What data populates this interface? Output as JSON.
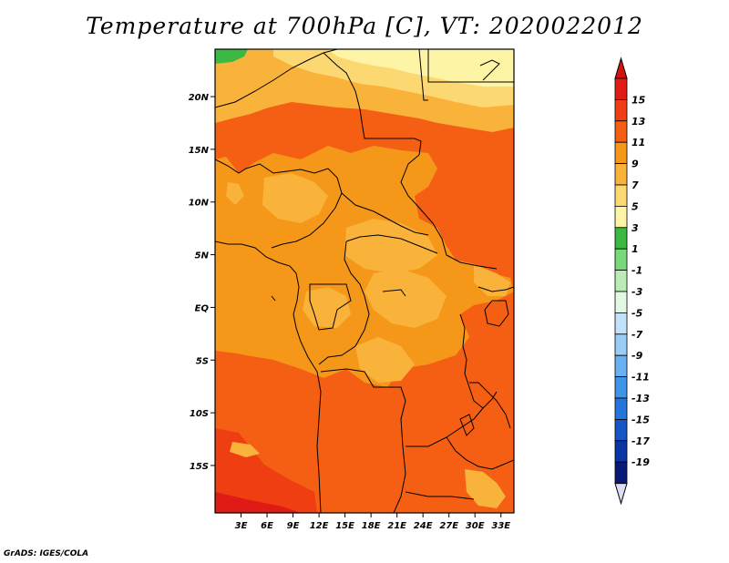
{
  "title": "Temperature at 700hPa [C], VT: 2020022012",
  "credit": "GrADS: IGES/COLA",
  "map": {
    "lat_ticks": [
      {
        "value": 20,
        "label": "20N"
      },
      {
        "value": 15,
        "label": "15N"
      },
      {
        "value": 10,
        "label": "10N"
      },
      {
        "value": 5,
        "label": "5N"
      },
      {
        "value": 0,
        "label": "EQ"
      },
      {
        "value": -5,
        "label": "5S"
      },
      {
        "value": -10,
        "label": "10S"
      },
      {
        "value": -15,
        "label": "15S"
      }
    ],
    "lon_ticks": [
      {
        "value": 3,
        "label": "3E"
      },
      {
        "value": 6,
        "label": "6E"
      },
      {
        "value": 9,
        "label": "9E"
      },
      {
        "value": 12,
        "label": "12E"
      },
      {
        "value": 15,
        "label": "15E"
      },
      {
        "value": 18,
        "label": "18E"
      },
      {
        "value": 21,
        "label": "21E"
      },
      {
        "value": 24,
        "label": "24E"
      },
      {
        "value": 27,
        "label": "27E"
      },
      {
        "value": 30,
        "label": "30E"
      },
      {
        "value": 33,
        "label": "33E"
      }
    ],
    "lon_range": [
      0,
      34.5
    ],
    "lat_range": [
      -19.5,
      24.5
    ]
  },
  "colorbar": {
    "levels": [
      {
        "label": "15",
        "color": "#e01a14"
      },
      {
        "label": "13",
        "color": "#ef3e12"
      },
      {
        "label": "11",
        "color": "#f45f14"
      },
      {
        "label": "9",
        "color": "#f5981a"
      },
      {
        "label": "7",
        "color": "#f9b33a"
      },
      {
        "label": "5",
        "color": "#fcd872"
      },
      {
        "label": "3",
        "color": "#fdf4a6"
      },
      {
        "label": "1",
        "color": "#3cb942"
      },
      {
        "label": "-1",
        "color": "#79d87a"
      },
      {
        "label": "-3",
        "color": "#b9ecb7"
      },
      {
        "label": "-5",
        "color": "#e3f8e3"
      },
      {
        "label": "-7",
        "color": "#c2e2fa"
      },
      {
        "label": "-9",
        "color": "#98cdf5"
      },
      {
        "label": "-11",
        "color": "#69b1f0"
      },
      {
        "label": "-13",
        "color": "#3e94e6"
      },
      {
        "label": "-15",
        "color": "#2375da"
      },
      {
        "label": "-17",
        "color": "#1556c4"
      },
      {
        "label": "-19",
        "color": "#0a35a3"
      },
      {
        "label": "",
        "color": "#071a78"
      }
    ],
    "top_color": "#d0140e",
    "bottom_color": "#dcdcf8"
  }
}
